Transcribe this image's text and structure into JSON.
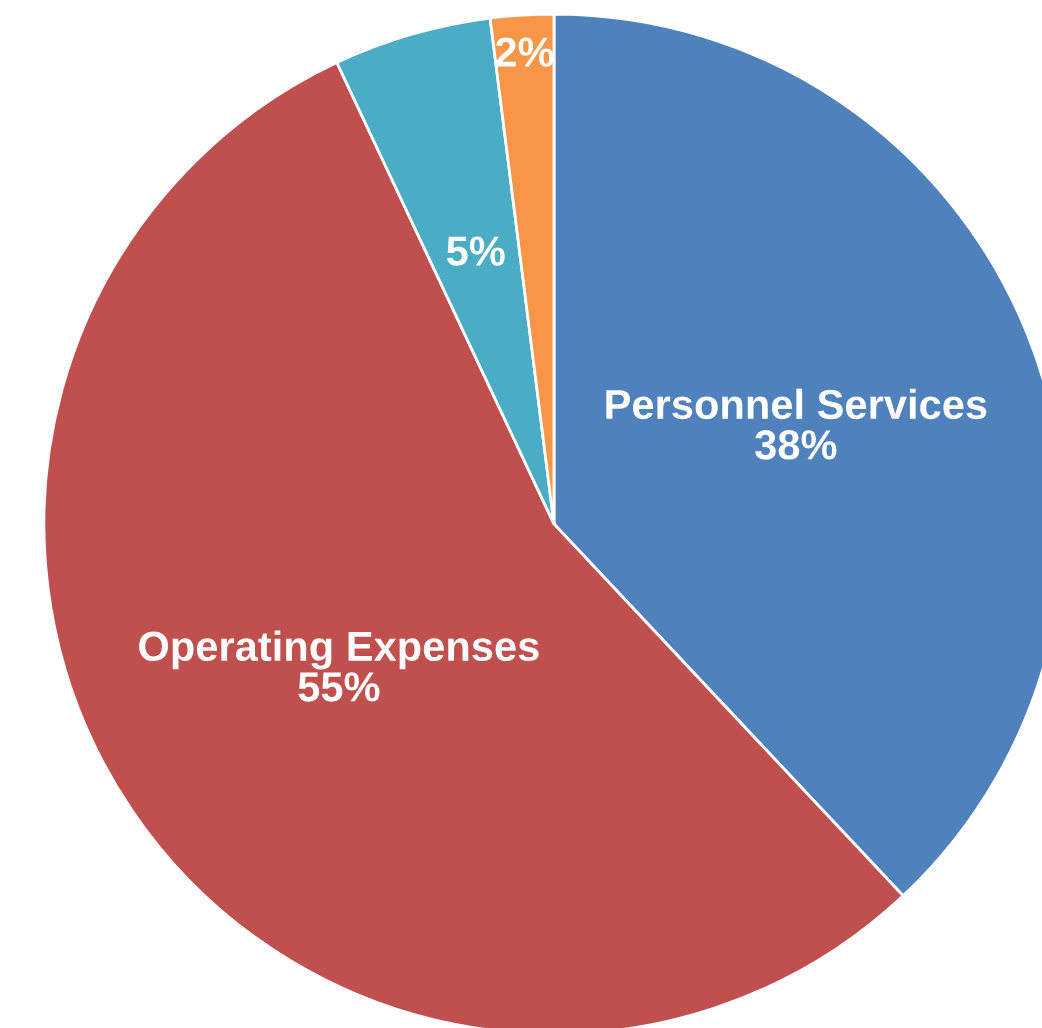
{
  "chart_data": {
    "type": "pie",
    "categories": [
      "Personnel Services",
      "Operating Expenses",
      null,
      null
    ],
    "values": [
      38,
      55,
      5,
      2
    ],
    "value_labels": [
      "38%",
      "55%",
      "5%",
      "2%"
    ],
    "colors": [
      "#4f81bd",
      "#c0504d",
      "#4bacc6",
      "#f79646"
    ],
    "legend": false
  }
}
